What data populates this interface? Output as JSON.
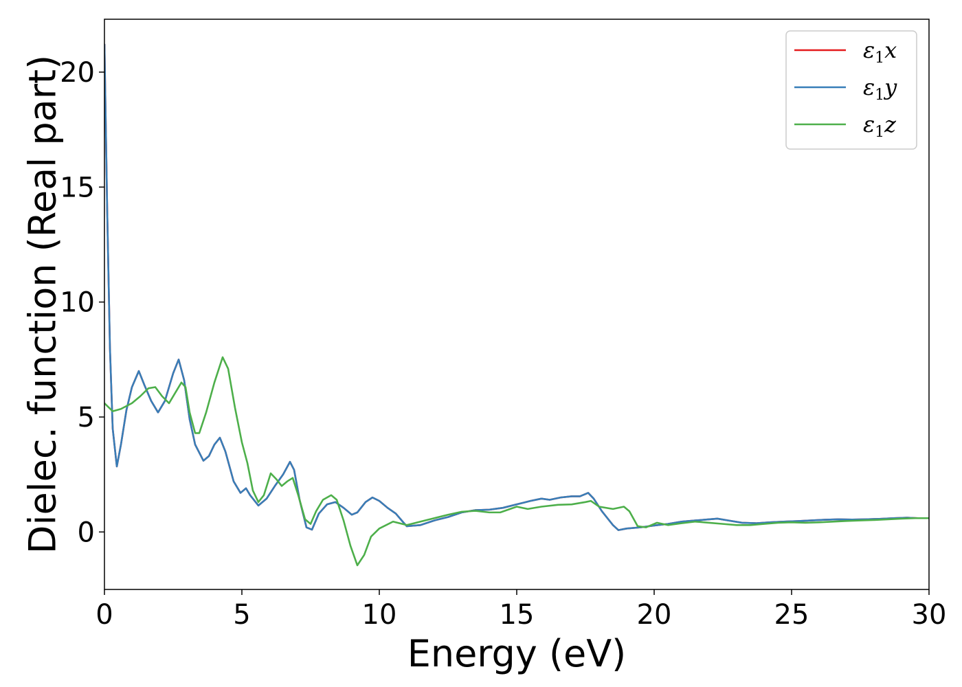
{
  "chart_data": {
    "type": "line",
    "xlabel": "Energy (eV)",
    "ylabel": "Dielec. function (Real part)",
    "xlim": [
      0,
      30
    ],
    "ylim": [
      -2.5,
      22.3
    ],
    "xticks": [
      0,
      5,
      10,
      15,
      20,
      25,
      30
    ],
    "yticks": [
      0,
      5,
      10,
      15,
      20
    ],
    "grid": false,
    "legend_position": "top-right",
    "series": [
      {
        "name": "ε1x",
        "legend_base": "ε",
        "legend_sub": "1",
        "legend_var": "x",
        "color": "#e41a1c",
        "points": [
          [
            0,
            21.2
          ],
          [
            0.1,
            14
          ],
          [
            0.2,
            8
          ],
          [
            0.3,
            4.5
          ],
          [
            0.45,
            2.85
          ],
          [
            0.6,
            3.8
          ],
          [
            0.8,
            5.3
          ],
          [
            1.0,
            6.3
          ],
          [
            1.25,
            7.0
          ],
          [
            1.45,
            6.4
          ],
          [
            1.7,
            5.7
          ],
          [
            1.95,
            5.2
          ],
          [
            2.2,
            5.7
          ],
          [
            2.5,
            6.9
          ],
          [
            2.7,
            7.5
          ],
          [
            2.9,
            6.6
          ],
          [
            3.1,
            4.9
          ],
          [
            3.3,
            3.8
          ],
          [
            3.6,
            3.1
          ],
          [
            3.8,
            3.3
          ],
          [
            4.0,
            3.8
          ],
          [
            4.2,
            4.1
          ],
          [
            4.4,
            3.5
          ],
          [
            4.7,
            2.2
          ],
          [
            4.95,
            1.7
          ],
          [
            5.15,
            1.9
          ],
          [
            5.3,
            1.6
          ],
          [
            5.6,
            1.15
          ],
          [
            5.9,
            1.45
          ],
          [
            6.2,
            2.0
          ],
          [
            6.5,
            2.5
          ],
          [
            6.75,
            3.05
          ],
          [
            6.9,
            2.7
          ],
          [
            7.1,
            1.4
          ],
          [
            7.35,
            0.2
          ],
          [
            7.55,
            0.1
          ],
          [
            7.8,
            0.8
          ],
          [
            8.1,
            1.2
          ],
          [
            8.4,
            1.3
          ],
          [
            8.7,
            1.05
          ],
          [
            9.0,
            0.75
          ],
          [
            9.2,
            0.85
          ],
          [
            9.5,
            1.3
          ],
          [
            9.75,
            1.5
          ],
          [
            10.0,
            1.35
          ],
          [
            10.3,
            1.05
          ],
          [
            10.6,
            0.8
          ],
          [
            10.85,
            0.45
          ],
          [
            11.0,
            0.25
          ],
          [
            11.5,
            0.3
          ],
          [
            12.0,
            0.5
          ],
          [
            12.5,
            0.65
          ],
          [
            13.0,
            0.85
          ],
          [
            13.5,
            0.95
          ],
          [
            14.0,
            0.97
          ],
          [
            14.5,
            1.05
          ],
          [
            15.0,
            1.2
          ],
          [
            15.5,
            1.35
          ],
          [
            15.9,
            1.45
          ],
          [
            16.2,
            1.4
          ],
          [
            16.6,
            1.5
          ],
          [
            17.0,
            1.55
          ],
          [
            17.3,
            1.55
          ],
          [
            17.6,
            1.7
          ],
          [
            17.8,
            1.45
          ],
          [
            18.1,
            0.9
          ],
          [
            18.5,
            0.3
          ],
          [
            18.7,
            0.08
          ],
          [
            19.0,
            0.15
          ],
          [
            19.5,
            0.2
          ],
          [
            20.0,
            0.28
          ],
          [
            20.5,
            0.35
          ],
          [
            21.0,
            0.45
          ],
          [
            21.5,
            0.5
          ],
          [
            22.0,
            0.55
          ],
          [
            22.3,
            0.58
          ],
          [
            22.7,
            0.5
          ],
          [
            23.2,
            0.4
          ],
          [
            23.7,
            0.38
          ],
          [
            24.2,
            0.42
          ],
          [
            24.7,
            0.45
          ],
          [
            25.2,
            0.47
          ],
          [
            25.7,
            0.5
          ],
          [
            26.2,
            0.53
          ],
          [
            26.7,
            0.55
          ],
          [
            27.2,
            0.54
          ],
          [
            27.7,
            0.55
          ],
          [
            28.2,
            0.57
          ],
          [
            28.7,
            0.6
          ],
          [
            29.2,
            0.62
          ],
          [
            29.6,
            0.6
          ],
          [
            30.0,
            0.6
          ]
        ]
      },
      {
        "name": "ε1y",
        "legend_base": "ε",
        "legend_sub": "1",
        "legend_var": "y",
        "color": "#377eb8",
        "points": [
          [
            0,
            21.2
          ],
          [
            0.1,
            14
          ],
          [
            0.2,
            8
          ],
          [
            0.3,
            4.5
          ],
          [
            0.45,
            2.85
          ],
          [
            0.6,
            3.8
          ],
          [
            0.8,
            5.3
          ],
          [
            1.0,
            6.3
          ],
          [
            1.25,
            7.0
          ],
          [
            1.45,
            6.4
          ],
          [
            1.7,
            5.7
          ],
          [
            1.95,
            5.2
          ],
          [
            2.2,
            5.7
          ],
          [
            2.5,
            6.9
          ],
          [
            2.7,
            7.5
          ],
          [
            2.9,
            6.6
          ],
          [
            3.1,
            4.9
          ],
          [
            3.3,
            3.8
          ],
          [
            3.6,
            3.1
          ],
          [
            3.8,
            3.3
          ],
          [
            4.0,
            3.8
          ],
          [
            4.2,
            4.1
          ],
          [
            4.4,
            3.5
          ],
          [
            4.7,
            2.2
          ],
          [
            4.95,
            1.7
          ],
          [
            5.15,
            1.9
          ],
          [
            5.3,
            1.6
          ],
          [
            5.6,
            1.15
          ],
          [
            5.9,
            1.45
          ],
          [
            6.2,
            2.0
          ],
          [
            6.5,
            2.5
          ],
          [
            6.75,
            3.05
          ],
          [
            6.9,
            2.7
          ],
          [
            7.1,
            1.4
          ],
          [
            7.35,
            0.2
          ],
          [
            7.55,
            0.1
          ],
          [
            7.8,
            0.8
          ],
          [
            8.1,
            1.2
          ],
          [
            8.4,
            1.3
          ],
          [
            8.7,
            1.05
          ],
          [
            9.0,
            0.75
          ],
          [
            9.2,
            0.85
          ],
          [
            9.5,
            1.3
          ],
          [
            9.75,
            1.5
          ],
          [
            10.0,
            1.35
          ],
          [
            10.3,
            1.05
          ],
          [
            10.6,
            0.8
          ],
          [
            10.85,
            0.45
          ],
          [
            11.0,
            0.25
          ],
          [
            11.5,
            0.3
          ],
          [
            12.0,
            0.5
          ],
          [
            12.5,
            0.65
          ],
          [
            13.0,
            0.85
          ],
          [
            13.5,
            0.95
          ],
          [
            14.0,
            0.97
          ],
          [
            14.5,
            1.05
          ],
          [
            15.0,
            1.2
          ],
          [
            15.5,
            1.35
          ],
          [
            15.9,
            1.45
          ],
          [
            16.2,
            1.4
          ],
          [
            16.6,
            1.5
          ],
          [
            17.0,
            1.55
          ],
          [
            17.3,
            1.55
          ],
          [
            17.6,
            1.7
          ],
          [
            17.8,
            1.45
          ],
          [
            18.1,
            0.9
          ],
          [
            18.5,
            0.3
          ],
          [
            18.7,
            0.08
          ],
          [
            19.0,
            0.15
          ],
          [
            19.5,
            0.2
          ],
          [
            20.0,
            0.28
          ],
          [
            20.5,
            0.35
          ],
          [
            21.0,
            0.45
          ],
          [
            21.5,
            0.5
          ],
          [
            22.0,
            0.55
          ],
          [
            22.3,
            0.58
          ],
          [
            22.7,
            0.5
          ],
          [
            23.2,
            0.4
          ],
          [
            23.7,
            0.38
          ],
          [
            24.2,
            0.42
          ],
          [
            24.7,
            0.45
          ],
          [
            25.2,
            0.47
          ],
          [
            25.7,
            0.5
          ],
          [
            26.2,
            0.53
          ],
          [
            26.7,
            0.55
          ],
          [
            27.2,
            0.54
          ],
          [
            27.7,
            0.55
          ],
          [
            28.2,
            0.57
          ],
          [
            28.7,
            0.6
          ],
          [
            29.2,
            0.62
          ],
          [
            29.6,
            0.6
          ],
          [
            30.0,
            0.6
          ]
        ]
      },
      {
        "name": "ε1z",
        "legend_base": "ε",
        "legend_sub": "1",
        "legend_var": "z",
        "color": "#4daf4a",
        "points": [
          [
            0,
            5.6
          ],
          [
            0.3,
            5.25
          ],
          [
            0.6,
            5.35
          ],
          [
            1.0,
            5.6
          ],
          [
            1.3,
            5.9
          ],
          [
            1.6,
            6.25
          ],
          [
            1.85,
            6.3
          ],
          [
            2.1,
            5.9
          ],
          [
            2.35,
            5.6
          ],
          [
            2.6,
            6.1
          ],
          [
            2.8,
            6.5
          ],
          [
            2.95,
            6.3
          ],
          [
            3.1,
            5.2
          ],
          [
            3.3,
            4.3
          ],
          [
            3.45,
            4.3
          ],
          [
            3.7,
            5.2
          ],
          [
            4.0,
            6.5
          ],
          [
            4.3,
            7.6
          ],
          [
            4.5,
            7.1
          ],
          [
            4.75,
            5.4
          ],
          [
            5.0,
            3.9
          ],
          [
            5.2,
            3.0
          ],
          [
            5.4,
            1.8
          ],
          [
            5.6,
            1.3
          ],
          [
            5.8,
            1.6
          ],
          [
            6.05,
            2.55
          ],
          [
            6.25,
            2.3
          ],
          [
            6.45,
            2.0
          ],
          [
            6.65,
            2.2
          ],
          [
            6.85,
            2.35
          ],
          [
            7.05,
            1.6
          ],
          [
            7.3,
            0.55
          ],
          [
            7.5,
            0.35
          ],
          [
            7.7,
            0.9
          ],
          [
            7.95,
            1.4
          ],
          [
            8.25,
            1.6
          ],
          [
            8.45,
            1.4
          ],
          [
            8.7,
            0.5
          ],
          [
            8.95,
            -0.6
          ],
          [
            9.2,
            -1.45
          ],
          [
            9.45,
            -1.0
          ],
          [
            9.7,
            -0.2
          ],
          [
            10.0,
            0.15
          ],
          [
            10.5,
            0.45
          ],
          [
            11.0,
            0.3
          ],
          [
            11.5,
            0.45
          ],
          [
            12.0,
            0.6
          ],
          [
            12.5,
            0.75
          ],
          [
            13.0,
            0.88
          ],
          [
            13.5,
            0.92
          ],
          [
            14.0,
            0.85
          ],
          [
            14.4,
            0.85
          ],
          [
            15.0,
            1.1
          ],
          [
            15.4,
            1.0
          ],
          [
            15.9,
            1.1
          ],
          [
            16.5,
            1.18
          ],
          [
            17.0,
            1.2
          ],
          [
            17.5,
            1.3
          ],
          [
            17.7,
            1.35
          ],
          [
            18.0,
            1.1
          ],
          [
            18.5,
            1.0
          ],
          [
            18.9,
            1.1
          ],
          [
            19.1,
            0.9
          ],
          [
            19.4,
            0.25
          ],
          [
            19.7,
            0.2
          ],
          [
            20.1,
            0.4
          ],
          [
            20.5,
            0.3
          ],
          [
            21.0,
            0.38
          ],
          [
            21.5,
            0.45
          ],
          [
            22.0,
            0.4
          ],
          [
            22.5,
            0.35
          ],
          [
            23.0,
            0.3
          ],
          [
            23.5,
            0.3
          ],
          [
            24.0,
            0.35
          ],
          [
            24.5,
            0.4
          ],
          [
            25.0,
            0.42
          ],
          [
            25.5,
            0.4
          ],
          [
            26.0,
            0.42
          ],
          [
            26.5,
            0.45
          ],
          [
            27.0,
            0.48
          ],
          [
            27.5,
            0.5
          ],
          [
            28.0,
            0.52
          ],
          [
            28.5,
            0.55
          ],
          [
            29.0,
            0.58
          ],
          [
            29.5,
            0.6
          ],
          [
            30.0,
            0.6
          ]
        ]
      }
    ]
  }
}
